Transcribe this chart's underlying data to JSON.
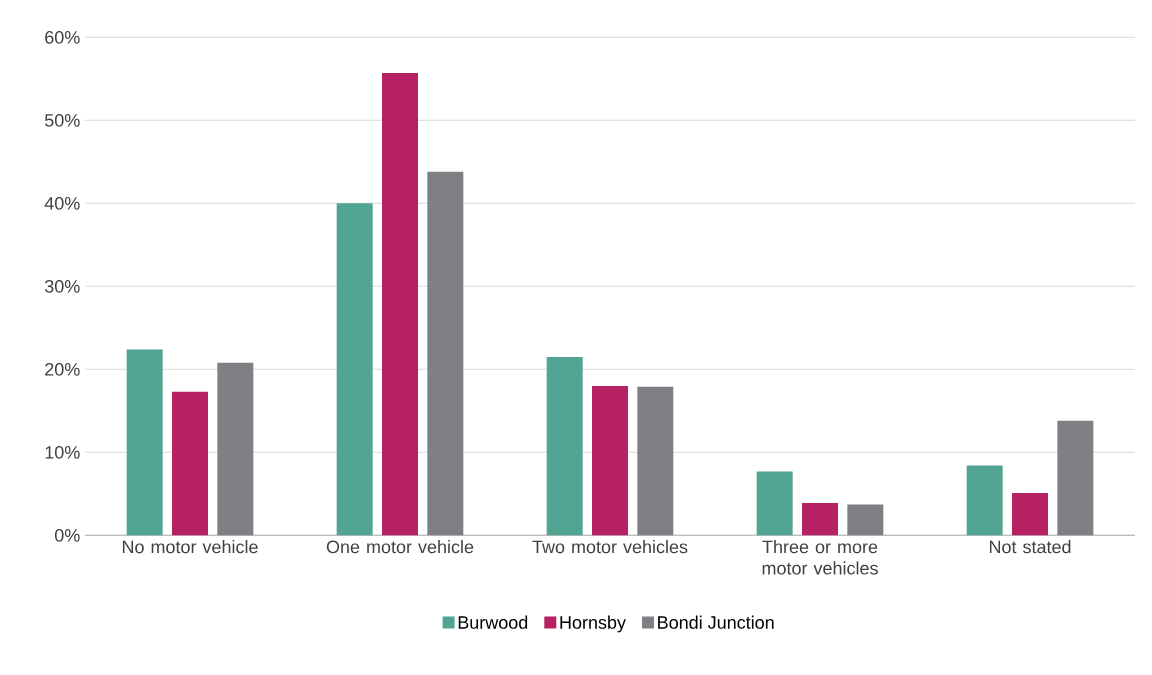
{
  "chart_data": {
    "type": "bar",
    "categories": [
      "No motor vehicle",
      "One motor vehicle",
      "Two motor vehicles",
      "Three or more motor vehicles",
      "Not stated"
    ],
    "series": [
      {
        "name": "Burwood",
        "color": "#52a593",
        "values": [
          22.4,
          40.0,
          21.5,
          7.7,
          8.4
        ]
      },
      {
        "name": "Hornsby",
        "color": "#b52163",
        "values": [
          17.3,
          55.7,
          18.0,
          3.9,
          5.1
        ]
      },
      {
        "name": "Bondi Junction",
        "color": "#808084",
        "values": [
          20.8,
          43.8,
          17.9,
          3.7,
          13.8
        ]
      }
    ],
    "ylim": [
      0,
      60
    ],
    "yticks": [
      {
        "value": 0,
        "label": "0%"
      },
      {
        "value": 10,
        "label": "10%"
      },
      {
        "value": 20,
        "label": "20%"
      },
      {
        "value": 30,
        "label": "30%"
      },
      {
        "value": 40,
        "label": "40%"
      },
      {
        "value": 50,
        "label": "50%"
      },
      {
        "value": 60,
        "label": "60%"
      }
    ],
    "grid": "y",
    "legend": "bottom"
  }
}
